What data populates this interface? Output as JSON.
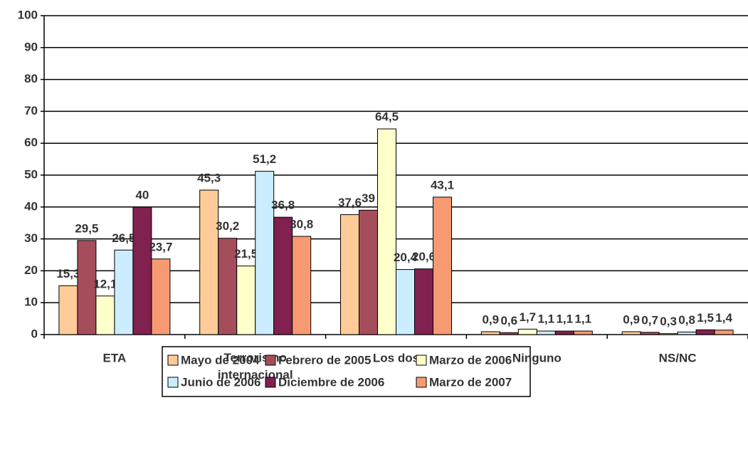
{
  "chart_data": {
    "type": "bar",
    "categories": [
      "ETA",
      "Terrorismo internacional",
      "Los dos",
      "Ninguno",
      "NS/NC"
    ],
    "series": [
      {
        "name": "Mayo de 2004",
        "color": "#FFCC99",
        "values": [
          15.3,
          45.3,
          37.6,
          0.9,
          0.9
        ],
        "value_labels": [
          "15,3",
          "45,3",
          "37,6",
          "0,9",
          "0,9"
        ]
      },
      {
        "name": "Febrero de 2005",
        "color": "#A64D5C",
        "values": [
          29.5,
          30.2,
          39,
          0.6,
          0.7
        ],
        "value_labels": [
          "29,5",
          "30,2",
          "39",
          "0,6",
          "0,7"
        ]
      },
      {
        "name": "Marzo de 2006",
        "color": "#FFFFCC",
        "values": [
          12.1,
          21.5,
          64.5,
          1.7,
          0.3
        ],
        "value_labels": [
          "12,1",
          "21,5",
          "64,5",
          "1,7",
          "0,3"
        ]
      },
      {
        "name": "Junio de 2006",
        "color": "#CCECFF",
        "values": [
          26.5,
          51.2,
          20.4,
          1.1,
          0.8
        ],
        "value_labels": [
          "26,5",
          "51,2",
          "20,4",
          "1,1",
          "0,8"
        ]
      },
      {
        "name": "Diciembre de 2006",
        "color": "#80214F",
        "values": [
          40,
          36.8,
          20.6,
          1.1,
          1.5
        ],
        "value_labels": [
          "40",
          "36,8",
          "20,6",
          "1,1",
          "1,5"
        ]
      },
      {
        "name": "Marzo de 2007",
        "color": "#F79A72",
        "values": [
          23.7,
          30.8,
          43.1,
          1.1,
          1.4
        ],
        "value_labels": [
          "23,7",
          "30,8",
          "43,1",
          "1,1",
          "1,4"
        ]
      }
    ],
    "ylim": [
      0,
      100
    ],
    "yticks": [
      0,
      10,
      20,
      30,
      40,
      50,
      60,
      70,
      80,
      90,
      100
    ],
    "grid": true,
    "legend": "bottom"
  }
}
